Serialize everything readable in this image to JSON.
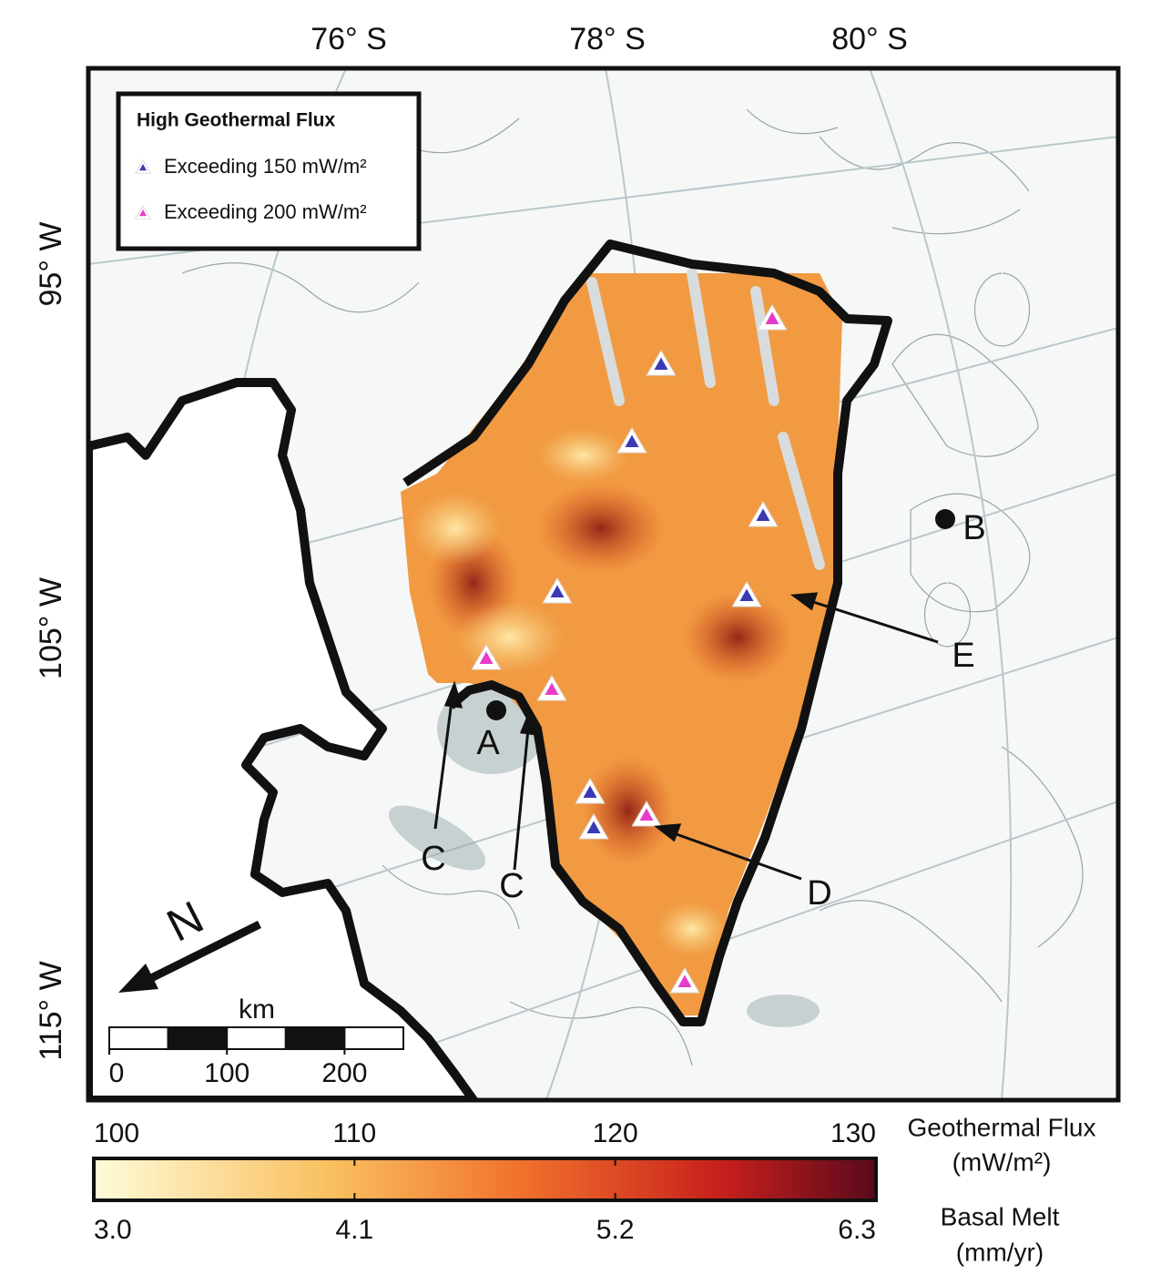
{
  "map": {
    "latitude_labels": [
      "76° S",
      "78° S",
      "80° S"
    ],
    "longitude_labels": [
      "95° W",
      "105° W",
      "115° W"
    ],
    "legend": {
      "title": "High Geothermal Flux",
      "items": [
        {
          "label": "Exceeding 150 mW/m²",
          "color": "#3a3ab4"
        },
        {
          "label": "Exceeding 200 mW/m²",
          "color": "#e63cc8"
        }
      ]
    },
    "point_labels": [
      "A",
      "B"
    ],
    "feature_labels": [
      "C",
      "C",
      "D",
      "E"
    ],
    "north_label": "N",
    "scale_bar": {
      "unit": "km",
      "ticks": [
        0,
        100,
        200
      ]
    }
  },
  "colorbar": {
    "flux": {
      "title": "Geothermal Flux",
      "unit": "(mW/m²)",
      "range": [
        100,
        130
      ],
      "ticks": [
        100,
        110,
        120,
        130
      ]
    },
    "melt": {
      "title": "Basal Melt",
      "unit": "(mm/yr)",
      "range": [
        3,
        6.3
      ],
      "ticks": [
        {
          "value": 3,
          "label": "3.0"
        },
        4.1,
        5.2,
        6.3
      ]
    }
  }
}
